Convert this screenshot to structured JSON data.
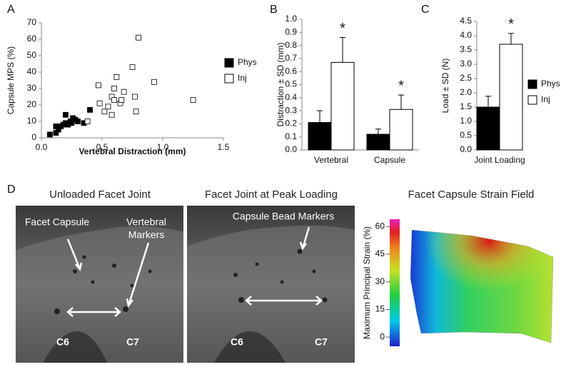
{
  "panel_labels": [
    "A",
    "B",
    "C",
    "D"
  ],
  "chart_data": [
    {
      "type": "scatter",
      "x_label": "Vertebral Distraction (mm)",
      "y_label": "Capsule MPS (%)",
      "xlim": [
        0,
        1.5
      ],
      "xticks": [
        {
          "value": 0,
          "label": "0.0"
        },
        0.5,
        {
          "value": 1,
          "label": "1.0"
        },
        1.5
      ],
      "ylim": [
        0,
        70
      ],
      "yticks": [
        0,
        10,
        20,
        30,
        40,
        50,
        60,
        70
      ],
      "legend": "right",
      "series": [
        {
          "name": "Phys",
          "color": "#000000",
          "filled": true,
          "x": [
            0.07,
            0.12,
            0.12,
            0.14,
            0.16,
            0.18,
            0.2,
            0.2,
            0.22,
            0.24,
            0.25,
            0.26,
            0.28,
            0.3,
            0.35,
            0.4
          ],
          "values": [
            2,
            3,
            7,
            5,
            7,
            8,
            14,
            9,
            8,
            10,
            9,
            12,
            11,
            10,
            9,
            17
          ]
        },
        {
          "name": "Inj",
          "color": "#000000",
          "filled": false,
          "x": [
            0.38,
            0.47,
            0.48,
            0.52,
            0.55,
            0.58,
            0.58,
            0.6,
            0.6,
            0.62,
            0.65,
            0.66,
            0.68,
            0.75,
            0.77,
            0.78,
            0.8,
            0.93,
            1.25
          ],
          "values": [
            10,
            32,
            21,
            16,
            19,
            14,
            25,
            30,
            23,
            37,
            21,
            23,
            28,
            43,
            25,
            16,
            61,
            34,
            23
          ]
        }
      ]
    },
    {
      "type": "bar",
      "y_label": "Distraction ± SD (mm)",
      "categories": [
        "Vertebral",
        "Capsule"
      ],
      "ylim": [
        0,
        1
      ],
      "yticks": [
        {
          "value": 0,
          "label": "0.0"
        },
        0.1,
        0.2,
        0.3,
        0.4,
        0.5,
        0.6,
        0.7,
        0.8,
        0.9,
        {
          "value": 1,
          "label": "1.0"
        }
      ],
      "legend": false,
      "annotations": [
        "*",
        "*"
      ],
      "series": [
        {
          "name": "Phys",
          "color": "#000000",
          "values": [
            0.21,
            0.12
          ],
          "errors": [
            0.09,
            0.04
          ]
        },
        {
          "name": "Inj",
          "color": "#ffffff",
          "values": [
            0.67,
            0.31
          ],
          "errors": [
            0.19,
            0.11
          ]
        }
      ]
    },
    {
      "type": "bar",
      "y_label": "Load ± SD (N)",
      "categories": [
        "Joint Loading"
      ],
      "ylim": [
        0,
        4.5
      ],
      "yticks": [
        {
          "value": 0,
          "label": "0.0"
        },
        0.5,
        {
          "value": 1,
          "label": "1.0"
        },
        1.5,
        {
          "value": 2,
          "label": "2.0"
        },
        2.5,
        {
          "value": 3,
          "label": "3.0"
        },
        3.5,
        {
          "value": 4,
          "label": "4.0"
        },
        4.5
      ],
      "legend": "right",
      "annotations": [
        "*"
      ],
      "series": [
        {
          "name": "Phys",
          "color": "#000000",
          "values": [
            1.5
          ],
          "errors": [
            0.38
          ]
        },
        {
          "name": "Inj",
          "color": "#ffffff",
          "values": [
            3.7
          ],
          "errors": [
            0.38
          ]
        }
      ]
    }
  ],
  "panel_d": {
    "images": [
      {
        "title": "Unloaded Facet Joint",
        "labels": [
          "Facet Capsule",
          "Vertebral",
          "Markers",
          "C6",
          "C7"
        ]
      },
      {
        "title": "Facet Joint at Peak Loading",
        "labels": [
          "Capsule Bead Markers",
          "C6",
          "C7"
        ]
      }
    ],
    "strain_field": {
      "title": "Facet Capsule Strain Field",
      "colorbar_label": "Maximum Principal Strain (%)",
      "colorbar_lim": [
        -5,
        64
      ],
      "colorbar_ticks": [
        0,
        15,
        30,
        45,
        60
      ]
    }
  }
}
